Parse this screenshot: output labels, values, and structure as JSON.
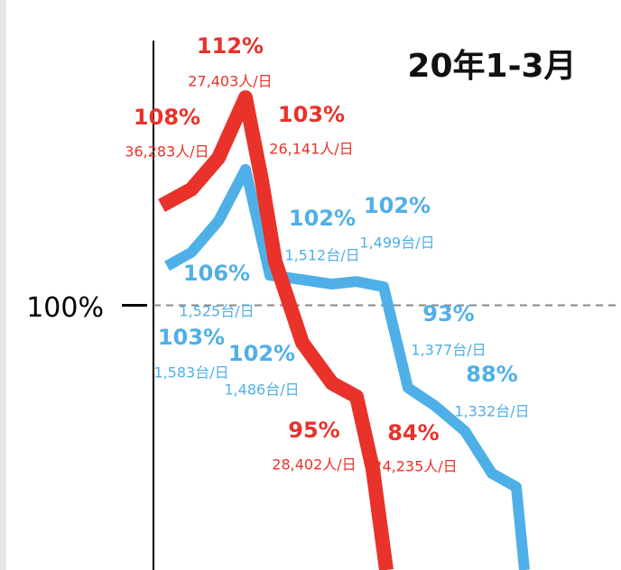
{
  "chart_data": {
    "type": "line",
    "period_label": "20年1-3月",
    "xlim": [
      0,
      17
    ],
    "ylim": [
      40,
      160
    ],
    "yticks": [
      {
        "value": 100,
        "label": "100%"
      }
    ],
    "grid": true,
    "series": [
      {
        "color": "#e8322a",
        "x": [
          0.3,
          1.4,
          2.4,
          3.4,
          4,
          4.5,
          5.5,
          6.6,
          7.5,
          8.1,
          8.6
        ],
        "values": [
          122.6,
          126.3,
          133.4,
          147.1,
          128.3,
          109.9,
          91.5,
          82.3,
          79.3,
          62.9,
          40
        ],
        "annotations": [
          {
            "text": "108%",
            "detail": "36,283人/日"
          },
          {
            "text": "112%",
            "detail": "27,403人/日"
          },
          {
            "text": "103%",
            "detail": "26,141人/日"
          },
          {
            "text": "95%",
            "detail": "28,402人/日"
          },
          {
            "text": "84%",
            "detail": "24,235人/日"
          }
        ]
      },
      {
        "color": "#4fb0e8",
        "x": [
          0.5,
          1.4,
          2.4,
          3.4,
          4.3,
          5.5,
          6.6,
          7.5,
          8.5,
          9.4,
          10.4,
          11.5,
          12.5,
          13.4,
          13.7
        ],
        "values": [
          108.9,
          112.0,
          119.1,
          130.8,
          106.8,
          105.8,
          104.8,
          105.4,
          104.2,
          81.3,
          77.2,
          71.5,
          61.9,
          58.8,
          40
        ],
        "annotations": [
          {
            "text": "106%",
            "detail": "1,525台/日"
          },
          {
            "text": "103%",
            "detail": "1,583台/日"
          },
          {
            "text": "102%",
            "detail": "1,486台/日"
          },
          {
            "text": "102%",
            "detail": "1,512台/日"
          },
          {
            "text": "102%",
            "detail": "1,499台/日"
          },
          {
            "text": "93%",
            "detail": "1,377台/日"
          },
          {
            "text": "88%",
            "detail": "1,332台/日"
          }
        ]
      }
    ]
  }
}
